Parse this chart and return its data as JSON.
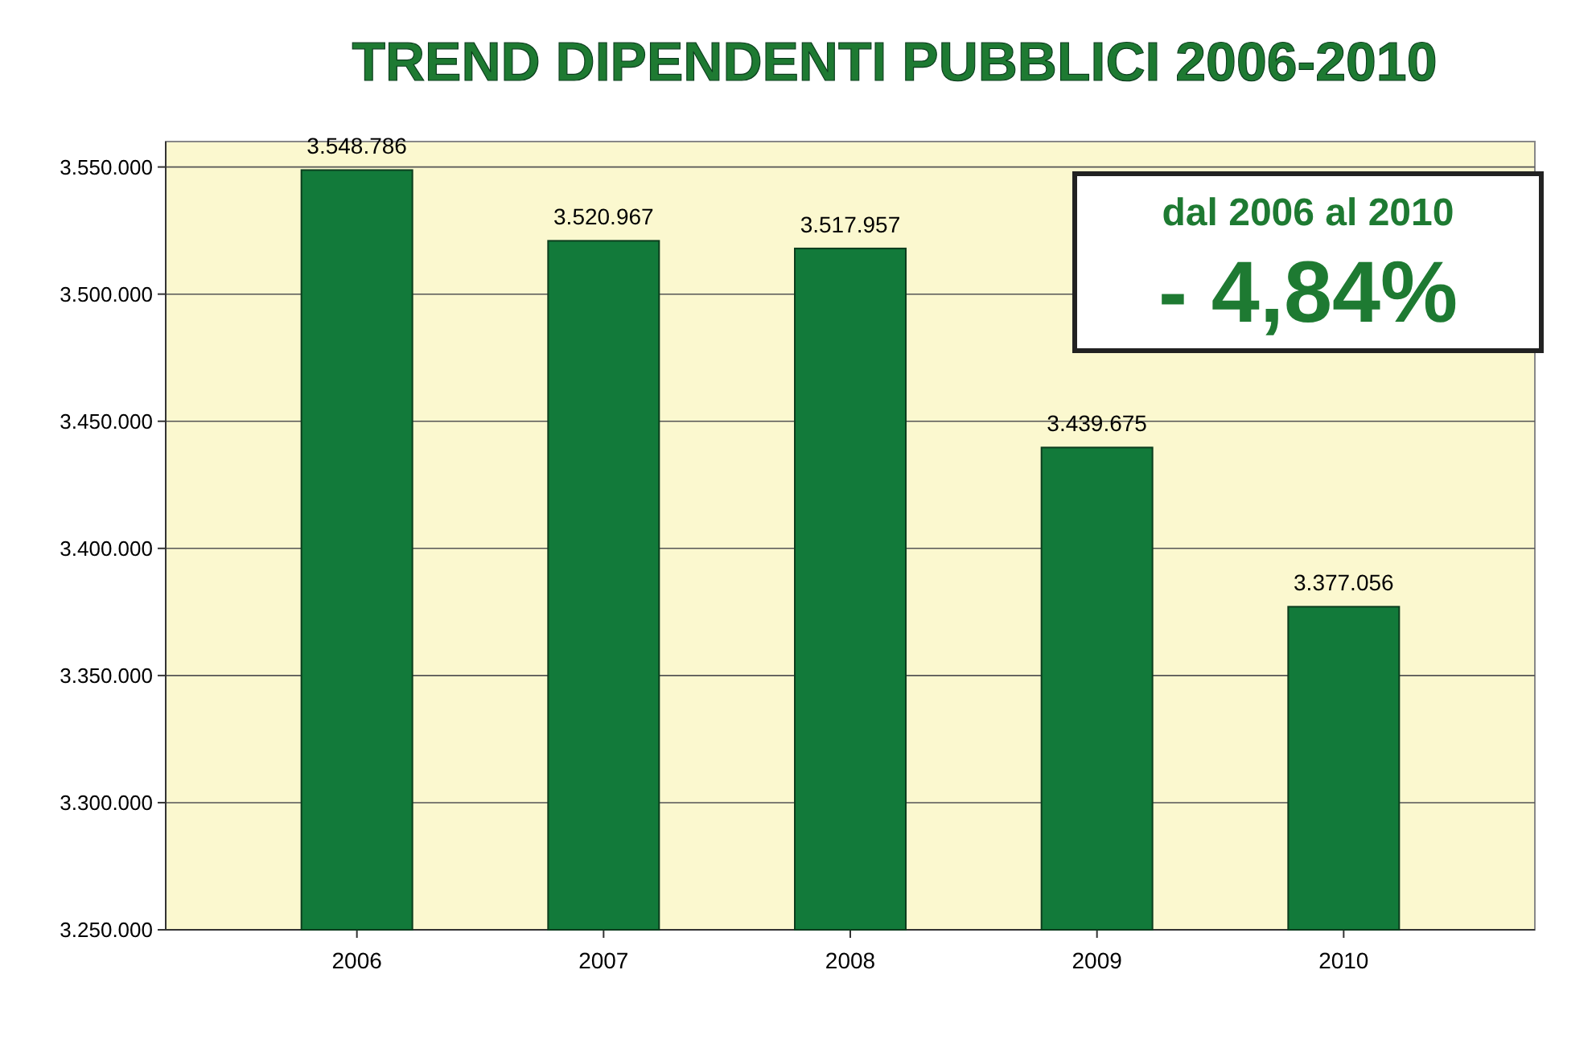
{
  "chart_data": {
    "type": "bar",
    "title": "TREND DIPENDENTI PUBBLICI 2006-2010",
    "categories": [
      "2006",
      "2007",
      "2008",
      "2009",
      "2010"
    ],
    "values": [
      3548786,
      3520967,
      3517957,
      3439675,
      3377056
    ],
    "value_labels": [
      "3.548.786",
      "3.520.967",
      "3.517.957",
      "3.439.675",
      "3.377.056"
    ],
    "color": "#127a3a",
    "ylim": [
      3250000,
      3560000
    ],
    "yticks": [
      {
        "value": 3250000,
        "label": "3.250.000"
      },
      {
        "value": 3300000,
        "label": "3.300.000"
      },
      {
        "value": 3350000,
        "label": "3.350.000"
      },
      {
        "value": 3400000,
        "label": "3.400.000"
      },
      {
        "value": 3450000,
        "label": "3.450.000"
      },
      {
        "value": 3500000,
        "label": "3.500.000"
      },
      {
        "value": 3550000,
        "label": "3.550.000"
      }
    ],
    "grid": "y",
    "annotations": [
      "dal 2006 al 2010",
      "- 4,84%"
    ]
  }
}
